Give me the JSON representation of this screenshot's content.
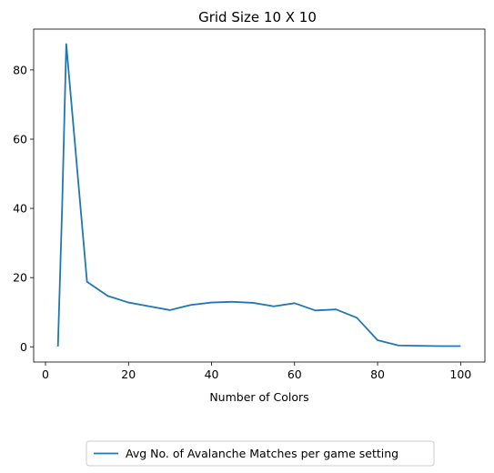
{
  "chart_data": {
    "type": "line",
    "title": "Grid Size 10 X 10",
    "xlabel": "Number of Colors",
    "ylabel": "",
    "xlim": [
      -2.85,
      105.85
    ],
    "ylim": [
      -4.4,
      91.8
    ],
    "xticks": [
      0,
      20,
      40,
      60,
      80,
      100
    ],
    "yticks": [
      0,
      20,
      40,
      60,
      80
    ],
    "grid": false,
    "legend_position": "bottom-center",
    "series": [
      {
        "name": "Avg No. of Avalanche Matches per game setting",
        "color": "#1f77b4",
        "x": [
          3,
          4,
          5,
          10,
          15,
          20,
          25,
          30,
          35,
          40,
          45,
          50,
          55,
          60,
          65,
          70,
          75,
          80,
          85,
          90,
          95,
          100
        ],
        "y": [
          0.1,
          40,
          87.5,
          18.8,
          14.7,
          12.8,
          11.7,
          10.6,
          12.1,
          12.8,
          13.0,
          12.7,
          11.7,
          12.6,
          10.5,
          10.8,
          8.4,
          1.9,
          0.4,
          0.3,
          0.2,
          0.2
        ]
      }
    ]
  }
}
